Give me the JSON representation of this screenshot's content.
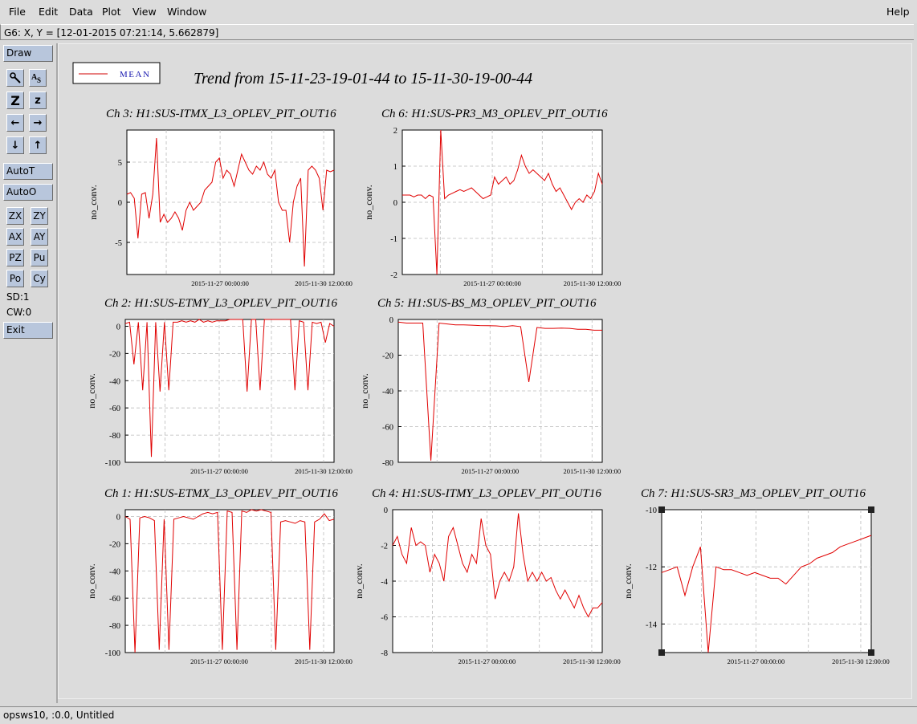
{
  "menu": {
    "file": "File",
    "edit": "Edit",
    "data": "Data",
    "plot": "Plot",
    "view": "View",
    "window": "Window",
    "help": "Help"
  },
  "status": "G6: X, Y = [12-01-2015 07:21:14, 5.662879]",
  "toolbar": {
    "draw": "Draw",
    "autot": "AutoT",
    "autoo": "AutoO",
    "pairs": [
      [
        "ZX",
        "ZY"
      ],
      [
        "AX",
        "AY"
      ],
      [
        "PZ",
        "Pu"
      ],
      [
        "Po",
        "Cy"
      ]
    ],
    "sd": "SD:1",
    "cw": "CW:0",
    "exit": "Exit"
  },
  "legend": {
    "label": "MEAN",
    "color": "#d00000"
  },
  "main_title": "Trend from 15-11-23-19-01-44 to 15-11-30-19-00-44",
  "footer": "opsws10, :0.0, Untitled",
  "chart_data": [
    {
      "type": "line",
      "title": "Ch 3: H1:SUS-ITMX_L3_OPLEV_PIT_OUT16",
      "ylabel": "no_conv.",
      "xtick_labels": [
        "2015-11-27 00:00:00",
        "2015-11-30 12:00:00"
      ],
      "ylim": [
        -9,
        9
      ],
      "yticks": [
        -5,
        0,
        5
      ],
      "series": [
        {
          "values": [
            1,
            1.2,
            0.5,
            -4.5,
            1,
            1.2,
            -2,
            1,
            8,
            -2.5,
            -1.5,
            -2.5,
            -2,
            -1.2,
            -2,
            -3.5,
            -1,
            0,
            -1,
            -0.5,
            0,
            1.5,
            2,
            2.5,
            5,
            5.5,
            3,
            4,
            3.5,
            2,
            4,
            6,
            5,
            4,
            3.5,
            4.5,
            4,
            5,
            3.5,
            3,
            4,
            0,
            -1,
            -1,
            -5,
            0,
            2,
            3,
            -8,
            4,
            4.5,
            4,
            3,
            -1,
            4,
            3.8,
            4
          ]
        }
      ]
    },
    {
      "type": "line",
      "title": "Ch 6: H1:SUS-PR3_M3_OPLEV_PIT_OUT16",
      "ylabel": "no_conv.",
      "xtick_labels": [
        "2015-11-27 00:00:00",
        "2015-11-30 12:00:00"
      ],
      "ylim": [
        -2,
        2
      ],
      "yticks": [
        -2,
        -1,
        0,
        1,
        2
      ],
      "series": [
        {
          "values": [
            0.2,
            0.2,
            0.2,
            0.15,
            0.2,
            0.2,
            0.1,
            0.2,
            0.15,
            -2,
            2,
            0.1,
            0.2,
            0.25,
            0.3,
            0.35,
            0.3,
            0.35,
            0.4,
            0.3,
            0.2,
            0.1,
            0.15,
            0.2,
            0.7,
            0.5,
            0.6,
            0.7,
            0.5,
            0.6,
            0.9,
            1.3,
            1,
            0.8,
            0.9,
            0.8,
            0.7,
            0.6,
            0.8,
            0.5,
            0.3,
            0.4,
            0.2,
            0,
            -0.2,
            0,
            0.1,
            0,
            0.2,
            0.1,
            0.3,
            0.8,
            0.5
          ]
        }
      ]
    },
    {
      "type": "line",
      "title": "Ch 2: H1:SUS-ETMY_L3_OPLEV_PIT_OUT16",
      "ylabel": "no_conv.",
      "xtick_labels": [
        "2015-11-27 00:00:00",
        "2015-11-30 12:00:00"
      ],
      "ylim": [
        -100,
        5
      ],
      "yticks": [
        -100,
        -80,
        -60,
        -40,
        -20,
        0
      ],
      "series": [
        {
          "values": [
            2,
            3,
            -28,
            3,
            -47,
            3,
            -96,
            3,
            -48,
            3,
            -47,
            3,
            3,
            4,
            3,
            4,
            3,
            5,
            3,
            4,
            3,
            4,
            4,
            4,
            5,
            6,
            5,
            6,
            -48,
            6,
            5,
            -47,
            6,
            5,
            6,
            5,
            6,
            7,
            6,
            -47,
            4,
            3,
            -47,
            3,
            2,
            3,
            -12,
            2,
            0
          ]
        }
      ]
    },
    {
      "type": "line",
      "title": "Ch 5: H1:SUS-BS_M3_OPLEV_PIT_OUT16",
      "ylabel": "no_conv.",
      "xtick_labels": [
        "2015-11-27 00:00:00",
        "2015-11-30 12:00:00"
      ],
      "ylim": [
        -80,
        0
      ],
      "yticks": [
        -80,
        -60,
        -40,
        -20,
        0
      ],
      "series": [
        {
          "values": [
            -1.5,
            -2,
            -2,
            -2,
            -79,
            -2,
            -2.5,
            -3,
            -3,
            -3.2,
            -3.4,
            -3.5,
            -3.6,
            -4,
            -3.5,
            -4,
            -35,
            -4.5,
            -5,
            -5,
            -4.8,
            -5,
            -5.5,
            -5.5,
            -6,
            -6
          ]
        }
      ]
    },
    {
      "type": "line",
      "title": "Ch 1: H1:SUS-ETMX_L3_OPLEV_PIT_OUT16",
      "ylabel": "no_conv.",
      "xtick_labels": [
        "2015-11-27 00:00:00",
        "2015-11-30 12:00:00"
      ],
      "ylim": [
        -100,
        5
      ],
      "yticks": [
        -100,
        -80,
        -60,
        -40,
        -20,
        0
      ],
      "series": [
        {
          "values": [
            0,
            -2,
            -100,
            -1,
            0,
            -1,
            -3,
            -98,
            -2,
            -98,
            -2,
            -1,
            0,
            -1,
            -2,
            0,
            2,
            3,
            2,
            3,
            -98,
            4,
            3,
            -98,
            4,
            3,
            5,
            4,
            5,
            4,
            3,
            -98,
            -4,
            -3,
            -4,
            -5,
            -3,
            -4,
            -98,
            -4,
            -2,
            2,
            -3,
            -2
          ]
        }
      ]
    },
    {
      "type": "line",
      "title": "Ch 4: H1:SUS-ITMY_L3_OPLEV_PIT_OUT16",
      "ylabel": "no_conv.",
      "xtick_labels": [
        "2015-11-27 00:00:00",
        "2015-11-30 12:00:00"
      ],
      "ylim": [
        -8,
        0
      ],
      "yticks": [
        -8,
        -6,
        -4,
        -2,
        0
      ],
      "series": [
        {
          "values": [
            -2,
            -1.5,
            -2.5,
            -3,
            -1,
            -2,
            -1.8,
            -2,
            -3.5,
            -2.5,
            -3,
            -4,
            -1.5,
            -1,
            -2,
            -3,
            -3.5,
            -2.5,
            -3,
            -0.5,
            -2,
            -2.5,
            -5,
            -4,
            -3.5,
            -4,
            -3.2,
            -0.2,
            -2.5,
            -4,
            -3.5,
            -4,
            -3.5,
            -4,
            -3.8,
            -4.5,
            -5,
            -4.5,
            -5,
            -5.5,
            -4.8,
            -5.5,
            -6,
            -5.5,
            -5.5,
            -5.2
          ]
        }
      ]
    },
    {
      "type": "line",
      "title": "Ch 7: H1:SUS-SR3_M3_OPLEV_PIT_OUT16",
      "ylabel": "no_conv.",
      "xtick_labels": [
        "2015-11-27 00:00:00",
        "2015-11-30 12:00:00"
      ],
      "ylim": [
        -15,
        -10
      ],
      "yticks": [
        -14,
        -12,
        -10
      ],
      "series": [
        {
          "values": [
            -12.2,
            -12.1,
            -12,
            -13,
            -12,
            -11.3,
            -15,
            -12,
            -12.1,
            -12.1,
            -12.2,
            -12.3,
            -12.2,
            -12.3,
            -12.4,
            -12.4,
            -12.6,
            -12.3,
            -12,
            -11.9,
            -11.7,
            -11.6,
            -11.5,
            -11.3,
            -11.2,
            -11.1,
            -11,
            -10.9
          ]
        }
      ]
    }
  ]
}
